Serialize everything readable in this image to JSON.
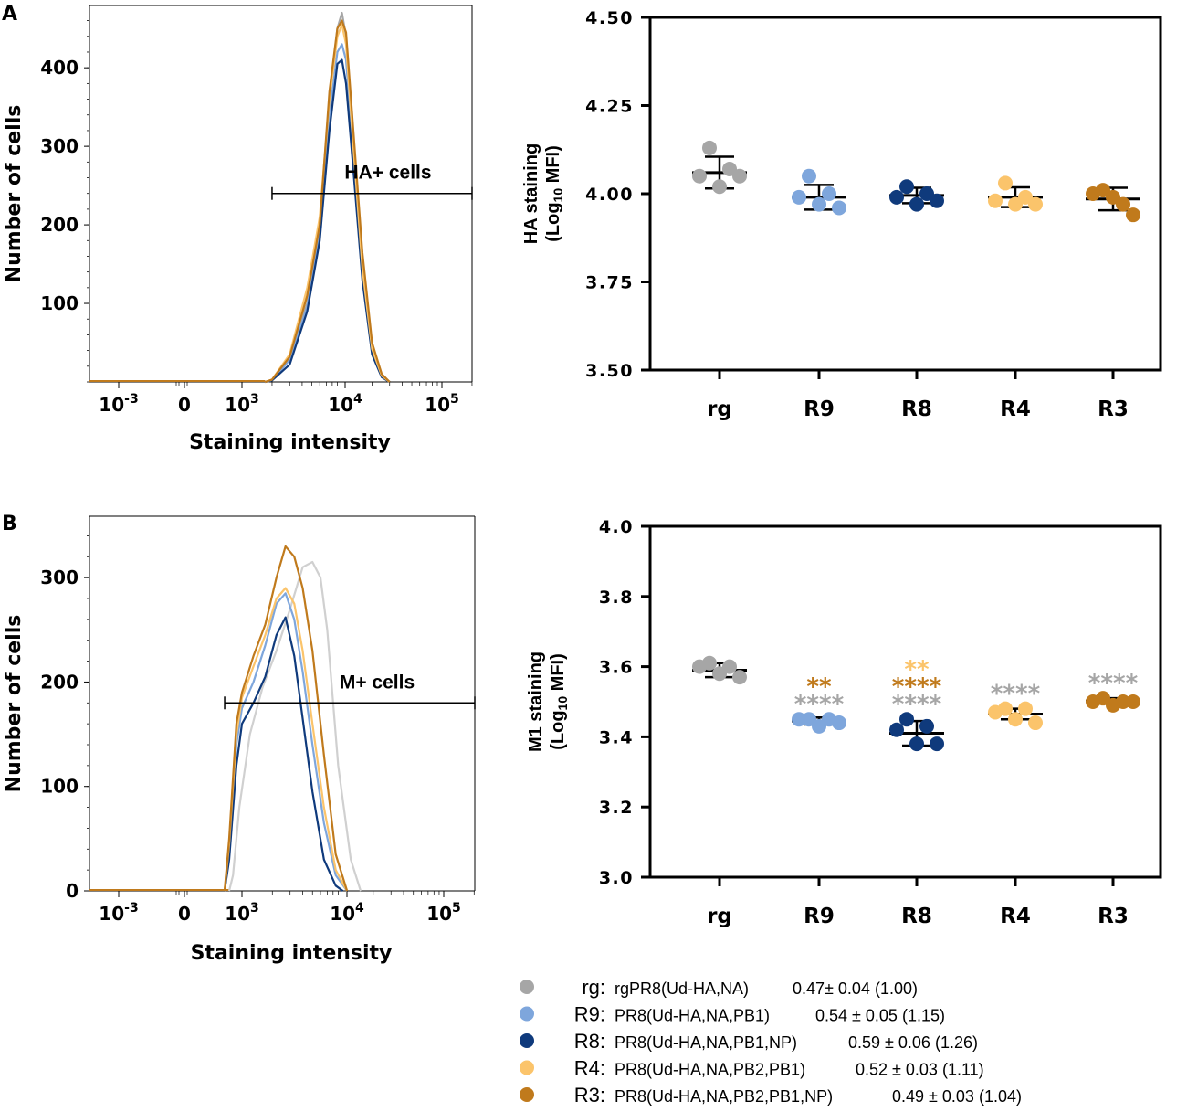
{
  "panels": {
    "A": {
      "label": "A"
    },
    "B": {
      "label": "B"
    }
  },
  "colors": {
    "rg": "#a6a6a6",
    "R9": "#7ea6dc",
    "R8": "#0f3a7c",
    "R4": "#fbc46b",
    "R3": "#c07a1c",
    "lightgray": "#d0d0d0"
  },
  "chart_data": [
    {
      "id": "histA",
      "type": "line",
      "panel": "A",
      "title": "",
      "xlabel": "Staining intensity",
      "ylabel": "Number of cells",
      "xscale": "log-biexponential",
      "x_ticks": [
        {
          "base": "10",
          "exp": "-3"
        },
        {
          "base": "0",
          "exp": ""
        },
        {
          "base": "10",
          "exp": "3"
        },
        {
          "base": "10",
          "exp": "4"
        },
        {
          "base": "10",
          "exp": "5"
        }
      ],
      "y_ticks": [
        "400",
        "300",
        "200",
        "100"
      ],
      "ylim": [
        0,
        470
      ],
      "gate": {
        "label": "HA+ cells",
        "from": 2000,
        "to": 250000,
        "y": 240
      },
      "series": [
        {
          "name": "rg",
          "color_key": "rg",
          "x": [
            1700,
            2000,
            3000,
            4500,
            6000,
            7500,
            9000,
            10000,
            11000,
            13000,
            16000,
            20000,
            25000,
            30000
          ],
          "y": [
            0,
            2,
            30,
            100,
            200,
            360,
            450,
            470,
            440,
            310,
            150,
            45,
            10,
            0
          ]
        },
        {
          "name": "R9",
          "color_key": "R9",
          "x": [
            1700,
            2000,
            3000,
            4500,
            6000,
            7500,
            9000,
            10000,
            11000,
            13000,
            16000,
            20000,
            25000,
            30000
          ],
          "y": [
            0,
            2,
            28,
            95,
            190,
            340,
            420,
            430,
            410,
            290,
            140,
            40,
            8,
            0
          ]
        },
        {
          "name": "R8",
          "color_key": "R8",
          "x": [
            1700,
            2000,
            3000,
            4500,
            6000,
            7500,
            9000,
            10000,
            11000,
            13000,
            16000,
            20000,
            25000,
            30000
          ],
          "y": [
            0,
            2,
            22,
            90,
            180,
            320,
            405,
            410,
            380,
            270,
            130,
            35,
            6,
            0
          ]
        },
        {
          "name": "R4",
          "color_key": "R4",
          "x": [
            1700,
            2000,
            3000,
            4500,
            6000,
            7500,
            9000,
            10000,
            11000,
            13000,
            16000,
            20000,
            25000,
            30000
          ],
          "y": [
            0,
            3,
            35,
            120,
            210,
            360,
            440,
            455,
            430,
            300,
            145,
            42,
            8,
            0
          ]
        },
        {
          "name": "R3",
          "color_key": "R3",
          "x": [
            1700,
            2000,
            3000,
            4500,
            6000,
            7500,
            9000,
            10000,
            11000,
            13000,
            16000,
            20000,
            25000,
            30000
          ],
          "y": [
            0,
            3,
            32,
            110,
            200,
            370,
            450,
            460,
            445,
            320,
            165,
            50,
            10,
            0
          ]
        }
      ]
    },
    {
      "id": "dotA",
      "type": "scatter",
      "panel": "A",
      "title": "",
      "xlabel": "",
      "ylabel": "HA staining",
      "ylabel2": "(Log",
      "ylabel2_sub": "10",
      "ylabel2_tail": " MFI)",
      "categories": [
        "rg",
        "R9",
        "R8",
        "R4",
        "R3"
      ],
      "ylim": [
        3.5,
        4.5
      ],
      "y_ticks": [
        "4.50",
        "4.25",
        "4.00",
        "3.75",
        "3.50"
      ],
      "y_tick_values": [
        4.5,
        4.25,
        4.0,
        3.75,
        3.5
      ],
      "series": [
        {
          "name": "rg",
          "color_key": "rg",
          "values": [
            4.05,
            4.13,
            4.02,
            4.07,
            4.05
          ],
          "mean": 4.06,
          "sd": 0.045
        },
        {
          "name": "R9",
          "color_key": "R9",
          "values": [
            3.99,
            4.05,
            3.97,
            4.0,
            3.96
          ],
          "mean": 3.99,
          "sd": 0.035
        },
        {
          "name": "R8",
          "color_key": "R8",
          "values": [
            3.99,
            4.02,
            3.97,
            4.0,
            3.98
          ],
          "mean": 3.995,
          "sd": 0.022
        },
        {
          "name": "R4",
          "color_key": "R4",
          "values": [
            3.98,
            4.03,
            3.97,
            3.99,
            3.97
          ],
          "mean": 3.99,
          "sd": 0.028
        },
        {
          "name": "R3",
          "color_key": "R3",
          "values": [
            4.0,
            4.01,
            3.99,
            3.97,
            3.94
          ],
          "mean": 3.985,
          "sd": 0.032
        }
      ],
      "annotations": []
    },
    {
      "id": "histB",
      "type": "line",
      "panel": "B",
      "title": "",
      "xlabel": "Staining intensity",
      "ylabel": "Number of cells",
      "xscale": "log-biexponential",
      "x_ticks": [
        {
          "base": "10",
          "exp": "-3"
        },
        {
          "base": "0",
          "exp": ""
        },
        {
          "base": "10",
          "exp": "3"
        },
        {
          "base": "10",
          "exp": "4"
        },
        {
          "base": "10",
          "exp": "5"
        }
      ],
      "y_ticks": [
        "300",
        "200",
        "100",
        "0"
      ],
      "ylim": [
        0,
        350
      ],
      "gate": {
        "label": "M+ cells",
        "from": 500,
        "to": 250000,
        "y": 180
      },
      "series": [
        {
          "name": "rg-light",
          "color_key": "lightgray",
          "x": [
            600,
            700,
            900,
            1200,
            1600,
            2200,
            3000,
            4000,
            5000,
            6000,
            7000,
            9000,
            12000,
            15000
          ],
          "y": [
            0,
            15,
            80,
            150,
            195,
            230,
            270,
            310,
            315,
            300,
            250,
            120,
            30,
            0
          ]
        },
        {
          "name": "R9",
          "color_key": "R9",
          "x": [
            500,
            600,
            800,
            1000,
            1300,
            1700,
            2200,
            2700,
            3300,
            4000,
            5000,
            6500,
            8500,
            11000
          ],
          "y": [
            0,
            40,
            140,
            175,
            200,
            235,
            275,
            285,
            260,
            210,
            140,
            65,
            15,
            0
          ]
        },
        {
          "name": "R8",
          "color_key": "R8",
          "x": [
            500,
            600,
            800,
            1000,
            1300,
            1700,
            2200,
            2700,
            3300,
            4000,
            5000,
            6500,
            8500,
            10000
          ],
          "y": [
            0,
            30,
            120,
            160,
            180,
            205,
            245,
            262,
            225,
            165,
            95,
            30,
            5,
            0
          ]
        },
        {
          "name": "R4",
          "color_key": "R4",
          "x": [
            500,
            600,
            800,
            1000,
            1300,
            1700,
            2200,
            2700,
            3300,
            4000,
            5000,
            6500,
            8500,
            11000
          ],
          "y": [
            0,
            45,
            150,
            185,
            215,
            245,
            280,
            290,
            275,
            230,
            160,
            80,
            20,
            0
          ]
        },
        {
          "name": "R3",
          "color_key": "R3",
          "x": [
            500,
            600,
            800,
            1000,
            1300,
            1700,
            2200,
            2700,
            3300,
            4000,
            5000,
            6500,
            8500,
            11000
          ],
          "y": [
            0,
            50,
            160,
            190,
            225,
            255,
            300,
            330,
            320,
            290,
            230,
            130,
            35,
            0
          ]
        }
      ]
    },
    {
      "id": "dotB",
      "type": "scatter",
      "panel": "B",
      "title": "",
      "xlabel": "",
      "ylabel": "M1 staining",
      "ylabel2": "(Log",
      "ylabel2_sub": "10",
      "ylabel2_tail": " MFI)",
      "categories": [
        "rg",
        "R9",
        "R8",
        "R4",
        "R3"
      ],
      "ylim": [
        3.0,
        4.0
      ],
      "y_ticks": [
        "4.0",
        "3.8",
        "3.6",
        "3.4",
        "3.2",
        "3.0"
      ],
      "y_tick_values": [
        4.0,
        3.8,
        3.6,
        3.4,
        3.2,
        3.0
      ],
      "series": [
        {
          "name": "rg",
          "color_key": "rg",
          "values": [
            3.6,
            3.61,
            3.58,
            3.6,
            3.57
          ],
          "mean": 3.59,
          "sd": 0.02
        },
        {
          "name": "R9",
          "color_key": "R9",
          "values": [
            3.45,
            3.45,
            3.43,
            3.45,
            3.44
          ],
          "mean": 3.445,
          "sd": 0.01
        },
        {
          "name": "R8",
          "color_key": "R8",
          "values": [
            3.42,
            3.45,
            3.38,
            3.43,
            3.38
          ],
          "mean": 3.41,
          "sd": 0.035
        },
        {
          "name": "R4",
          "color_key": "R4",
          "values": [
            3.47,
            3.48,
            3.45,
            3.48,
            3.44
          ],
          "mean": 3.465,
          "sd": 0.015
        },
        {
          "name": "R3",
          "color_key": "R3",
          "values": [
            3.5,
            3.51,
            3.49,
            3.5,
            3.5
          ],
          "mean": 3.502,
          "sd": 0.008
        }
      ],
      "annotations": [
        {
          "category": "R9",
          "lines": [
            {
              "text": "**",
              "color_key": "R3"
            },
            {
              "text": "****",
              "color_key": "rg"
            }
          ]
        },
        {
          "category": "R8",
          "lines": [
            {
              "text": "**",
              "color_key": "R4"
            },
            {
              "text": "****",
              "color_key": "R3"
            },
            {
              "text": "****",
              "color_key": "rg"
            }
          ]
        },
        {
          "category": "R4",
          "lines": [
            {
              "text": "****",
              "color_key": "rg"
            }
          ]
        },
        {
          "category": "R3",
          "lines": [
            {
              "text": "****",
              "color_key": "rg"
            }
          ]
        }
      ]
    }
  ],
  "legend": {
    "items": [
      {
        "key": "rg:",
        "desc": "rgPR8(Ud-HA,NA)",
        "value": "0.47± 0.04 (1.00)",
        "color_key": "rg"
      },
      {
        "key": "R9:",
        "desc": "PR8(Ud-HA,NA,PB1)",
        "value": "0.54 ± 0.05 (1.15)",
        "color_key": "R9"
      },
      {
        "key": "R8:",
        "desc": "PR8(Ud-HA,NA,PB1,NP)",
        "value": "0.59 ± 0.06 (1.26)",
        "color_key": "R8"
      },
      {
        "key": "R4:",
        "desc": "PR8(Ud-HA,NA,PB2,PB1)",
        "value": "0.52 ± 0.03 (1.11)",
        "color_key": "R4"
      },
      {
        "key": "R3:",
        "desc": "PR8(Ud-HA,NA,PB2,PB1,NP)",
        "value": "0.49 ± 0.03 (1.04)",
        "color_key": "R3"
      }
    ]
  }
}
